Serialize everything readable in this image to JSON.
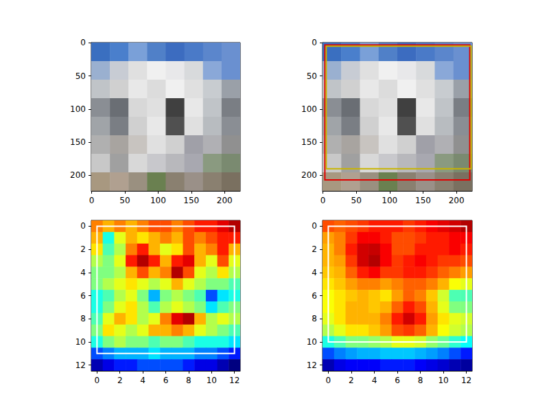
{
  "chart_data": [
    {
      "type": "image",
      "xlim": [
        -0.5,
        223.5
      ],
      "ylim": [
        223.5,
        -0.5
      ],
      "xticks": [
        0,
        50,
        100,
        150,
        200
      ],
      "yticks": [
        0,
        50,
        100,
        150,
        200
      ],
      "cells": [
        [
          "#3a6fc0",
          "#4a7fcc",
          "#7aa0d8",
          "#5080c8",
          "#3c6cc0",
          "#4a7ac8",
          "#5b86cc",
          "#6a90d0"
        ],
        [
          "#9ab0d0",
          "#c8ccd4",
          "#e0e0e0",
          "#f0f0f0",
          "#e8e8ea",
          "#d8dadc",
          "#8aa8d8",
          "#6a90d0"
        ],
        [
          "#c0c4c8",
          "#d0d0d0",
          "#e8e8e8",
          "#dcdcdc",
          "#f0f0f0",
          "#e0e0e0",
          "#c8ccd0",
          "#9aa0a8"
        ],
        [
          "#8a8e94",
          "#6a6e74",
          "#d8d8d8",
          "#e0e0e0",
          "#404040",
          "#e8e8e8",
          "#c0c4c8",
          "#7a7e84"
        ],
        [
          "#a0a4a8",
          "#7a7e84",
          "#d0d0d0",
          "#e8e8e8",
          "#505050",
          "#e0e0e0",
          "#b8bcc0",
          "#8a8e94"
        ],
        [
          "#b0b0b0",
          "#a8a4a0",
          "#c8c4c0",
          "#e0e0e0",
          "#d0d0d0",
          "#a0a0a8",
          "#b0b0b4",
          "#909090"
        ],
        [
          "#c8c8c8",
          "#a0a0a0",
          "#d8d8d8",
          "#c8c8cc",
          "#b8b8bc",
          "#a8a8b0",
          "#8a9a80",
          "#7a8a70"
        ],
        [
          "#a89880",
          "#b0a090",
          "#9a9080",
          "#6a8050",
          "#8a8070",
          "#9a9088",
          "#8a8070",
          "#7a7060"
        ]
      ]
    },
    {
      "type": "image",
      "xlim": [
        -0.5,
        223.5
      ],
      "ylim": [
        223.5,
        -0.5
      ],
      "xticks": [
        0,
        50,
        100,
        150,
        200
      ],
      "yticks": [
        0,
        50,
        100,
        150,
        200
      ],
      "cells": [
        [
          "#3a6fc0",
          "#4a7fcc",
          "#7aa0d8",
          "#5080c8",
          "#3c6cc0",
          "#4a7ac8",
          "#5b86cc",
          "#6a90d0"
        ],
        [
          "#9ab0d0",
          "#c8ccd4",
          "#e0e0e0",
          "#f0f0f0",
          "#e8e8ea",
          "#d8dadc",
          "#8aa8d8",
          "#6a90d0"
        ],
        [
          "#c0c4c8",
          "#d0d0d0",
          "#e8e8e8",
          "#dcdcdc",
          "#f0f0f0",
          "#e0e0e0",
          "#c8ccd0",
          "#9aa0a8"
        ],
        [
          "#8a8e94",
          "#6a6e74",
          "#d8d8d8",
          "#e0e0e0",
          "#404040",
          "#e8e8e8",
          "#c0c4c8",
          "#7a7e84"
        ],
        [
          "#a0a4a8",
          "#7a7e84",
          "#d0d0d0",
          "#e8e8e8",
          "#505050",
          "#e0e0e0",
          "#b8bcc0",
          "#8a8e94"
        ],
        [
          "#b0b0b0",
          "#a8a4a0",
          "#c8c4c0",
          "#e0e0e0",
          "#d0d0d0",
          "#a0a0a8",
          "#b0b0b4",
          "#909090"
        ],
        [
          "#c8c8c8",
          "#a0a0a0",
          "#d8d8d8",
          "#c8c8cc",
          "#b8b8bc",
          "#a8a8b0",
          "#8a9a80",
          "#7a8a70"
        ],
        [
          "#a89880",
          "#b0a090",
          "#9a9080",
          "#6a8050",
          "#8a8070",
          "#9a9088",
          "#8a8070",
          "#7a7060"
        ]
      ],
      "boxes": [
        {
          "color": "#e00000",
          "coords": [
            3,
            3,
            220,
            207
          ]
        },
        {
          "color": "#c8b400",
          "coords": [
            5,
            5,
            222,
            190
          ]
        }
      ]
    },
    {
      "type": "heatmap",
      "xlim": [
        -0.5,
        12.5
      ],
      "ylim": [
        12.5,
        -0.5
      ],
      "xticks": [
        0,
        2,
        4,
        6,
        8,
        10,
        12
      ],
      "yticks": [
        0,
        2,
        4,
        6,
        8,
        10,
        12
      ],
      "color_range": [
        0,
        1
      ],
      "cells": [
        [
          0.75,
          0.7,
          0.75,
          0.7,
          0.75,
          0.8,
          0.8,
          0.75,
          0.8,
          0.85,
          0.85,
          0.9,
          0.95
        ],
        [
          0.7,
          0.4,
          0.6,
          0.7,
          0.65,
          0.7,
          0.75,
          0.7,
          0.8,
          0.75,
          0.8,
          0.85,
          0.85
        ],
        [
          0.65,
          0.45,
          0.55,
          0.75,
          0.85,
          0.7,
          0.6,
          0.65,
          0.8,
          0.7,
          0.75,
          0.85,
          0.7
        ],
        [
          0.55,
          0.5,
          0.6,
          0.85,
          0.95,
          0.85,
          0.7,
          0.85,
          0.9,
          0.7,
          0.6,
          0.8,
          0.6
        ],
        [
          0.5,
          0.5,
          0.55,
          0.7,
          0.8,
          0.7,
          0.75,
          0.95,
          0.8,
          0.6,
          0.55,
          0.65,
          0.55
        ],
        [
          0.5,
          0.55,
          0.6,
          0.65,
          0.6,
          0.55,
          0.6,
          0.7,
          0.6,
          0.55,
          0.5,
          0.5,
          0.45
        ],
        [
          0.4,
          0.45,
          0.55,
          0.6,
          0.5,
          0.3,
          0.5,
          0.55,
          0.5,
          0.45,
          0.2,
          0.35,
          0.4
        ],
        [
          0.4,
          0.5,
          0.6,
          0.65,
          0.55,
          0.45,
          0.55,
          0.6,
          0.55,
          0.5,
          0.35,
          0.45,
          0.5
        ],
        [
          0.45,
          0.6,
          0.7,
          0.65,
          0.55,
          0.6,
          0.75,
          0.9,
          0.95,
          0.7,
          0.55,
          0.6,
          0.55
        ],
        [
          0.5,
          0.65,
          0.6,
          0.55,
          0.6,
          0.7,
          0.7,
          0.75,
          0.7,
          0.6,
          0.55,
          0.5,
          0.45
        ],
        [
          0.4,
          0.5,
          0.55,
          0.5,
          0.5,
          0.45,
          0.5,
          0.5,
          0.45,
          0.4,
          0.4,
          0.4,
          0.35
        ],
        [
          0.2,
          0.25,
          0.3,
          0.3,
          0.3,
          0.35,
          0.3,
          0.3,
          0.3,
          0.25,
          0.25,
          0.2,
          0.15
        ],
        [
          0.05,
          0.1,
          0.15,
          0.15,
          0.2,
          0.2,
          0.2,
          0.2,
          0.15,
          0.1,
          0.1,
          0.05,
          0.0
        ]
      ],
      "boxes": [
        {
          "color": "#ffffff",
          "coords": [
            0,
            0,
            12,
            11
          ]
        }
      ]
    },
    {
      "type": "heatmap",
      "xlim": [
        -0.5,
        12.5
      ],
      "ylim": [
        12.5,
        -0.5
      ],
      "xticks": [
        0,
        2,
        4,
        6,
        8,
        10,
        12
      ],
      "yticks": [
        0,
        2,
        4,
        6,
        8,
        10,
        12
      ],
      "color_range": [
        0,
        1
      ],
      "cells": [
        [
          0.8,
          0.78,
          0.8,
          0.82,
          0.85,
          0.85,
          0.85,
          0.82,
          0.85,
          0.88,
          0.9,
          0.92,
          0.95
        ],
        [
          0.72,
          0.75,
          0.82,
          0.88,
          0.88,
          0.85,
          0.8,
          0.8,
          0.82,
          0.85,
          0.85,
          0.88,
          0.88
        ],
        [
          0.7,
          0.75,
          0.85,
          0.92,
          0.93,
          0.88,
          0.8,
          0.8,
          0.85,
          0.85,
          0.85,
          0.88,
          0.85
        ],
        [
          0.7,
          0.72,
          0.82,
          0.92,
          0.95,
          0.88,
          0.82,
          0.85,
          0.88,
          0.85,
          0.82,
          0.82,
          0.8
        ],
        [
          0.68,
          0.7,
          0.78,
          0.85,
          0.88,
          0.82,
          0.82,
          0.85,
          0.85,
          0.82,
          0.78,
          0.75,
          0.72
        ],
        [
          0.65,
          0.68,
          0.72,
          0.75,
          0.75,
          0.72,
          0.75,
          0.78,
          0.78,
          0.75,
          0.7,
          0.62,
          0.6
        ],
        [
          0.62,
          0.65,
          0.68,
          0.7,
          0.68,
          0.65,
          0.72,
          0.78,
          0.75,
          0.68,
          0.58,
          0.45,
          0.45
        ],
        [
          0.62,
          0.65,
          0.7,
          0.7,
          0.68,
          0.7,
          0.78,
          0.85,
          0.8,
          0.7,
          0.6,
          0.5,
          0.5
        ],
        [
          0.6,
          0.65,
          0.7,
          0.7,
          0.7,
          0.75,
          0.85,
          0.92,
          0.85,
          0.72,
          0.65,
          0.6,
          0.58
        ],
        [
          0.55,
          0.6,
          0.65,
          0.65,
          0.68,
          0.72,
          0.8,
          0.82,
          0.78,
          0.7,
          0.62,
          0.58,
          0.55
        ],
        [
          0.4,
          0.45,
          0.5,
          0.5,
          0.52,
          0.55,
          0.6,
          0.6,
          0.58,
          0.52,
          0.48,
          0.42,
          0.38
        ],
        [
          0.2,
          0.25,
          0.28,
          0.3,
          0.3,
          0.32,
          0.32,
          0.32,
          0.3,
          0.28,
          0.25,
          0.2,
          0.15
        ],
        [
          0.05,
          0.1,
          0.12,
          0.12,
          0.12,
          0.15,
          0.15,
          0.15,
          0.12,
          0.1,
          0.08,
          0.05,
          0.03
        ]
      ],
      "boxes": [
        {
          "color": "#ffffff",
          "coords": [
            0,
            0,
            12,
            10
          ]
        }
      ]
    }
  ]
}
